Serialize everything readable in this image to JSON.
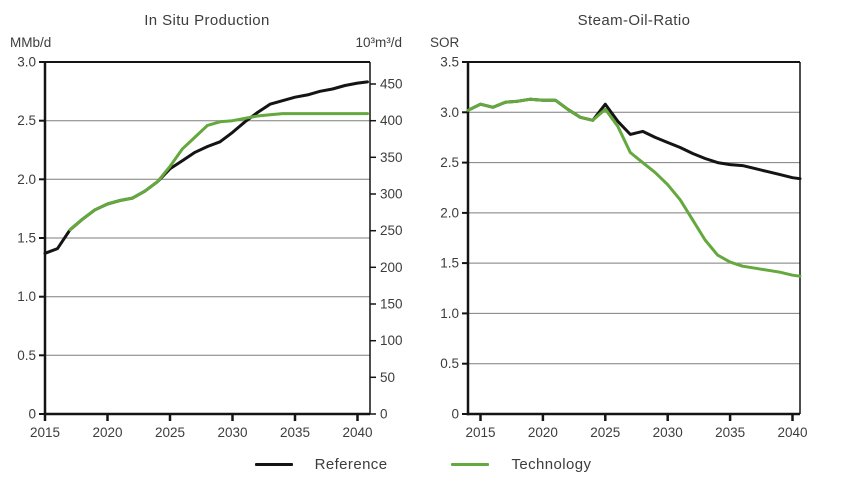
{
  "chart_data": [
    {
      "type": "line",
      "title": "In Situ Production",
      "grid": true,
      "y_left": {
        "label": "MMb/d",
        "min": 0,
        "max": 3.0,
        "tick_values": [
          3.0,
          2.5,
          2.0,
          1.5,
          1.0,
          0.5,
          0
        ],
        "tick_labels": [
          "3.0",
          "2.5",
          "2.0",
          "1.5",
          "1.0",
          "0.5",
          "0"
        ],
        "gridlines": [
          0.5,
          1.0,
          1.5,
          2.0,
          2.5
        ]
      },
      "y_right": {
        "label": "10³m³/d",
        "min": 0,
        "axis_max": 480,
        "tick_values": [
          450,
          400,
          350,
          300,
          250,
          200,
          150,
          100,
          50,
          0
        ],
        "tick_labels": [
          "450",
          "400",
          "350",
          "300",
          "250",
          "200",
          "150",
          "100",
          "50",
          "0"
        ]
      },
      "x": {
        "min": 2015,
        "max": 2041,
        "tick_values": [
          2015,
          2020,
          2025,
          2030,
          2035,
          2040
        ],
        "tick_labels": [
          "2015",
          "2020",
          "2025",
          "2030",
          "2035",
          "2040"
        ]
      },
      "series": [
        {
          "name": "Reference",
          "color": "#141414",
          "years": [
            2015,
            2016,
            2017,
            2018,
            2019,
            2020,
            2021,
            2022,
            2023,
            2024,
            2025,
            2026,
            2027,
            2028,
            2029,
            2030,
            2031,
            2032,
            2033,
            2034,
            2035,
            2036,
            2037,
            2038,
            2039,
            2040,
            2040.8
          ],
          "values": [
            1.37,
            1.41,
            1.57,
            1.66,
            1.74,
            1.79,
            1.82,
            1.84,
            1.9,
            1.98,
            2.09,
            2.16,
            2.23,
            2.28,
            2.32,
            2.4,
            2.49,
            2.57,
            2.64,
            2.67,
            2.7,
            2.72,
            2.75,
            2.77,
            2.8,
            2.82,
            2.83
          ]
        },
        {
          "name": "Technology",
          "color": "#64a83e",
          "years": [
            2017,
            2018,
            2019,
            2020,
            2021,
            2022,
            2023,
            2024,
            2025,
            2026,
            2027,
            2028,
            2029,
            2030,
            2031,
            2032,
            2033,
            2034,
            2035,
            2036,
            2037,
            2038,
            2039,
            2040,
            2040.8
          ],
          "values": [
            1.57,
            1.66,
            1.74,
            1.79,
            1.82,
            1.84,
            1.9,
            1.98,
            2.11,
            2.26,
            2.36,
            2.46,
            2.49,
            2.5,
            2.52,
            2.54,
            2.55,
            2.56,
            2.56,
            2.56,
            2.56,
            2.56,
            2.56,
            2.56,
            2.56
          ]
        }
      ]
    },
    {
      "type": "line",
      "title": "Steam-Oil-Ratio",
      "grid": true,
      "y_left": {
        "label": "SOR",
        "min": 0,
        "max": 3.5,
        "tick_values": [
          3.5,
          3.0,
          2.5,
          2.0,
          1.5,
          1.0,
          0.5,
          0
        ],
        "tick_labels": [
          "3.5",
          "3.0",
          "2.5",
          "2.0",
          "1.5",
          "1.0",
          "0.5",
          "0"
        ],
        "gridlines": [
          0.5,
          1.0,
          1.5,
          2.0,
          2.5,
          3.0
        ]
      },
      "x": {
        "min": 2014,
        "max": 2040.6,
        "tick_values": [
          2015,
          2020,
          2025,
          2030,
          2035,
          2040
        ],
        "tick_labels": [
          "2015",
          "2020",
          "2025",
          "2030",
          "2035",
          "2040"
        ]
      },
      "series": [
        {
          "name": "Reference",
          "color": "#141414",
          "years": [
            2014,
            2015,
            2016,
            2017,
            2018,
            2019,
            2020,
            2021,
            2022,
            2023,
            2024,
            2025,
            2026,
            2027,
            2028,
            2029,
            2030,
            2031,
            2032,
            2033,
            2034,
            2035,
            2036,
            2037,
            2038,
            2039,
            2040,
            2040.6
          ],
          "values": [
            3.02,
            3.08,
            3.05,
            3.1,
            3.11,
            3.13,
            3.12,
            3.12,
            3.03,
            2.95,
            2.92,
            3.08,
            2.91,
            2.78,
            2.81,
            2.75,
            2.7,
            2.65,
            2.59,
            2.54,
            2.5,
            2.48,
            2.47,
            2.44,
            2.41,
            2.38,
            2.35,
            2.34
          ]
        },
        {
          "name": "Technology",
          "color": "#64a83e",
          "years": [
            2014,
            2015,
            2016,
            2017,
            2018,
            2019,
            2020,
            2021,
            2022,
            2023,
            2024,
            2025,
            2026,
            2027,
            2028,
            2029,
            2030,
            2031,
            2032,
            2033,
            2034,
            2035,
            2036,
            2037,
            2038,
            2039,
            2040,
            2040.6
          ],
          "values": [
            3.02,
            3.08,
            3.05,
            3.1,
            3.11,
            3.13,
            3.12,
            3.12,
            3.03,
            2.95,
            2.92,
            3.03,
            2.86,
            2.6,
            2.5,
            2.4,
            2.28,
            2.13,
            1.93,
            1.73,
            1.58,
            1.51,
            1.47,
            1.45,
            1.43,
            1.41,
            1.38,
            1.37
          ]
        }
      ],
      "legend_position": "bottom"
    }
  ],
  "legend": {
    "items": [
      {
        "label": "Reference",
        "color": "#141414"
      },
      {
        "label": "Technology",
        "color": "#64a83e"
      }
    ]
  },
  "colors": {
    "reference_line": "#141414",
    "technology_line": "#64a83e",
    "gridline": "#7e7e7e",
    "text": "#3d3d3d"
  }
}
